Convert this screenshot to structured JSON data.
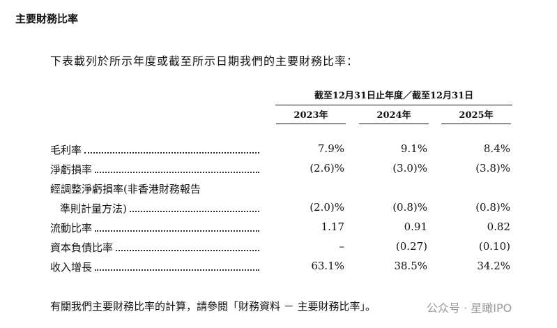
{
  "heading": "主要財務比率",
  "intro": "下表載列於所示年度或截至所示日期我們的主要財務比率：",
  "table": {
    "group_header": "截至12月31日止年度／截至12月31日",
    "columns": [
      "2023年",
      "2024年",
      "2025年"
    ],
    "rows": [
      {
        "label": [
          "毛利率"
        ],
        "values": [
          "7.9%",
          "9.1%",
          "8.4%"
        ]
      },
      {
        "label": [
          "淨虧損率"
        ],
        "values": [
          "(2.6)%",
          "(3.0)%",
          "(3.8)%"
        ]
      },
      {
        "label": [
          "經調整淨虧損率(非香港財務報告",
          "準則計量方法)"
        ],
        "values": [
          "(2.0)%",
          "(0.8)%",
          "(0.8)%"
        ]
      },
      {
        "label": [
          "流動比率"
        ],
        "values": [
          "1.17",
          "0.91",
          "0.82"
        ]
      },
      {
        "label": [
          "資本負債比率"
        ],
        "values": [
          "–",
          "(0.27)",
          "(0.10)"
        ]
      },
      {
        "label": [
          "收入增長"
        ],
        "values": [
          "63.1%",
          "38.5%",
          "34.2%"
        ]
      }
    ]
  },
  "footer": "有關我們主要財務比率的計算，請參閱「財務資料 － 主要財務比率」。",
  "watermark": "公众号 · 星瞰IPO"
}
